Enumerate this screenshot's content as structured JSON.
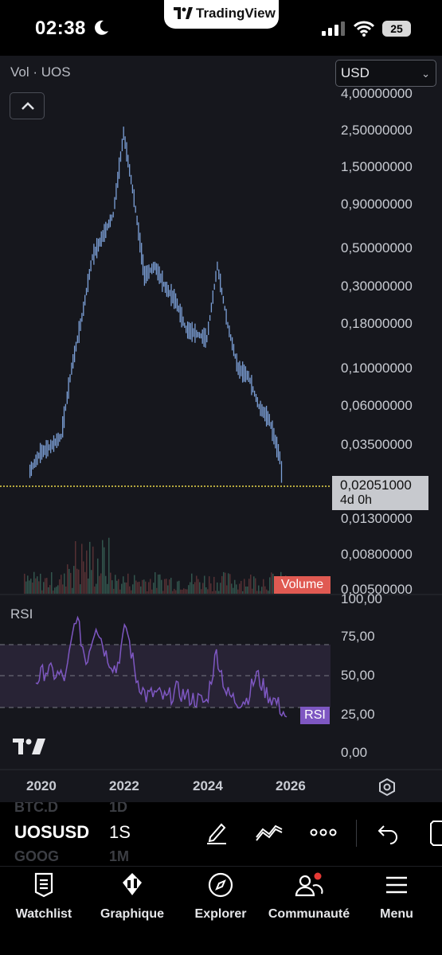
{
  "status_bar": {
    "time": "02:38",
    "app_pill": "TradingView",
    "battery": "25",
    "icons": [
      "moon-icon",
      "cellular-signal-icon",
      "wifi-icon",
      "battery-icon"
    ]
  },
  "chart": {
    "title": "Vol · UOS",
    "currency": "USD",
    "price_axis": [
      "4,00000000",
      "2,50000000",
      "1,50000000",
      "0,90000000",
      "0,50000000",
      "0,30000000",
      "0,18000000",
      "0,10000000",
      "0,06000000",
      "0,03500000",
      "0,01300000",
      "0,00800000",
      "0,00500000"
    ],
    "current_price": "0,02051000",
    "countdown": "4d 0h",
    "volume_label": "Volume",
    "rsi_title": "RSI",
    "rsi_label": "RSI",
    "rsi_axis": [
      "100,00",
      "75,00",
      "50,00",
      "25,00",
      "0,00"
    ],
    "time_axis": [
      "2020",
      "2022",
      "2024",
      "2026"
    ],
    "colors": {
      "line": "#7b9fd6",
      "rsi": "#7e57c2",
      "price_line": "#e8d84a",
      "volume_tag": "#e05a52"
    }
  },
  "chart_data": [
    {
      "type": "line",
      "title": "",
      "xlabel": "",
      "ylabel": "",
      "scale": "log",
      "x": [
        "2019-09",
        "2019-12",
        "2020-03",
        "2020-06",
        "2020-09",
        "2020-12",
        "2021-03",
        "2021-06",
        "2021-09",
        "2021-12",
        "2022-03",
        "2022-06",
        "2022-09",
        "2022-12",
        "2023-03",
        "2023-06",
        "2023-09",
        "2023-12",
        "2024-03",
        "2024-06",
        "2024-09",
        "2024-12",
        "2025-03",
        "2025-06",
        "2025-09",
        "2025-10"
      ],
      "values": [
        0.025,
        0.032,
        0.035,
        0.04,
        0.1,
        0.2,
        0.45,
        0.6,
        0.8,
        2.4,
        1.0,
        0.35,
        0.4,
        0.3,
        0.25,
        0.17,
        0.16,
        0.15,
        0.4,
        0.18,
        0.1,
        0.09,
        0.06,
        0.05,
        0.03,
        0.02051
      ],
      "ylim": [
        0.005,
        4.0
      ],
      "grid": false
    },
    {
      "type": "line",
      "title": "RSI",
      "series": [
        {
          "name": "RSI",
          "values": [
            48,
            55,
            52,
            50,
            90,
            60,
            85,
            65,
            55,
            83,
            50,
            38,
            40,
            36,
            42,
            38,
            36,
            34,
            66,
            40,
            35,
            36,
            52,
            40,
            34,
            25
          ]
        }
      ],
      "ylim": [
        0,
        100
      ],
      "levels": [
        70,
        50,
        30
      ]
    }
  ],
  "toolbar": {
    "symbol": "UOSUSD",
    "interval": "1S",
    "ghost_top_symbol": "BTC.D",
    "ghost_top_interval": "1D",
    "ghost_bottom_symbol": "GOOG",
    "ghost_bottom_interval": "1M"
  },
  "nav": [
    {
      "label": "Watchlist",
      "icon": "watchlist-icon"
    },
    {
      "label": "Graphique",
      "icon": "chart-icon"
    },
    {
      "label": "Explorer",
      "icon": "compass-icon"
    },
    {
      "label": "Communauté",
      "icon": "community-icon"
    },
    {
      "label": "Menu",
      "icon": "menu-icon"
    }
  ]
}
